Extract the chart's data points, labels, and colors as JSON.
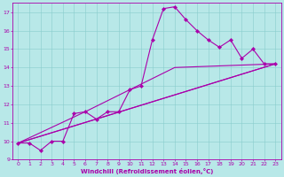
{
  "xlabel": "Windchill (Refroidissement éolien,°C)",
  "background_color": "#b8e8e8",
  "grid_color": "#88cccc",
  "line_color": "#aa00aa",
  "xlim": [
    -0.5,
    23.5
  ],
  "ylim": [
    9,
    17.5
  ],
  "yticks": [
    9,
    10,
    11,
    12,
    13,
    14,
    15,
    16,
    17
  ],
  "xticks": [
    0,
    1,
    2,
    3,
    4,
    5,
    6,
    7,
    8,
    9,
    10,
    11,
    12,
    13,
    14,
    15,
    16,
    17,
    18,
    19,
    20,
    21,
    22,
    23
  ],
  "line_main": {
    "x": [
      0,
      1,
      2,
      3,
      4,
      5,
      6,
      7,
      8,
      9,
      10,
      11,
      12,
      13,
      14,
      15,
      16,
      17,
      18,
      19,
      20,
      21,
      22,
      23
    ],
    "y": [
      9.9,
      9.9,
      9.5,
      10.0,
      10.0,
      11.5,
      11.6,
      11.2,
      11.6,
      11.6,
      12.8,
      13.0,
      15.5,
      17.2,
      17.3,
      16.6,
      16.0,
      15.5,
      15.1,
      15.5,
      14.5,
      15.0,
      14.2,
      14.2
    ]
  },
  "line_straight1": {
    "x": [
      0,
      23
    ],
    "y": [
      9.9,
      14.2
    ]
  },
  "line_straight2": {
    "x": [
      0,
      23
    ],
    "y": [
      9.9,
      14.2
    ]
  },
  "line_curved1": {
    "x": [
      0,
      7,
      23
    ],
    "y": [
      9.9,
      11.2,
      14.2
    ]
  },
  "line_curved2": {
    "x": [
      0,
      6,
      14,
      23
    ],
    "y": [
      9.9,
      11.6,
      14.0,
      14.2
    ]
  },
  "tick_fontsize": 4.5,
  "xlabel_fontsize": 5.0,
  "marker_size": 2.2,
  "linewidth": 0.8
}
